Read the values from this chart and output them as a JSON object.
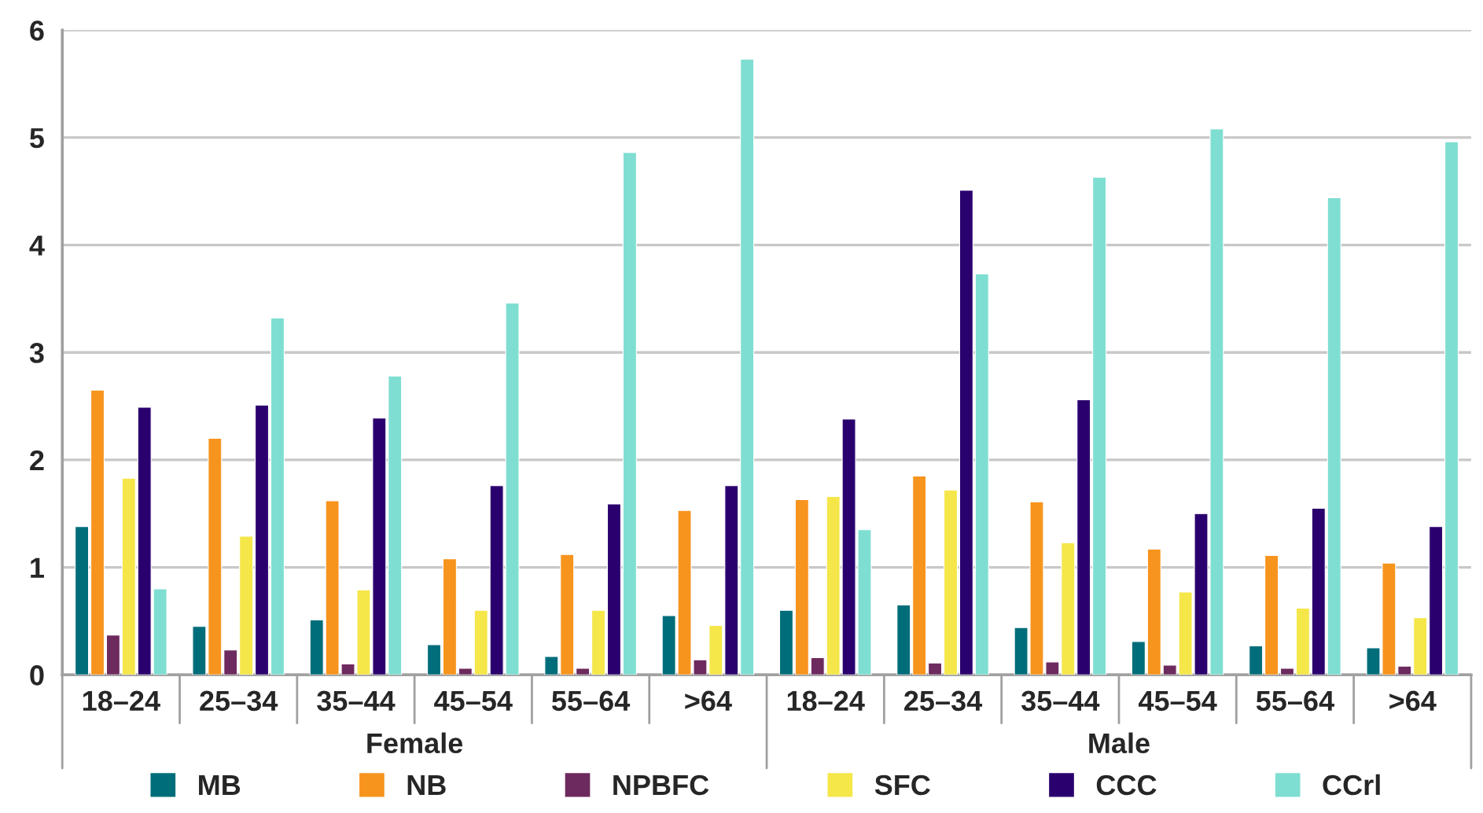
{
  "chart_data": {
    "type": "bar",
    "categories": [
      "18–24",
      "25–34",
      "35–44",
      "45–54",
      "55–64",
      ">64",
      "18–24",
      "25–34",
      "35–44",
      "45–54",
      "55–64",
      ">64"
    ],
    "annotations": [
      "Female",
      "Male"
    ],
    "series": [
      {
        "name": "MB",
        "color": "#006d7a",
        "values": [
          1.38,
          0.45,
          0.51,
          0.28,
          0.17,
          0.55,
          0.6,
          0.65,
          0.44,
          0.31,
          0.27,
          0.25
        ]
      },
      {
        "name": "NB",
        "color": "#f7941d",
        "values": [
          2.65,
          2.2,
          1.62,
          1.08,
          1.12,
          1.53,
          1.63,
          1.85,
          1.61,
          1.17,
          1.11,
          1.04
        ]
      },
      {
        "name": "NPBFC",
        "color": "#6d2a5e",
        "values": [
          0.37,
          0.23,
          0.1,
          0.06,
          0.06,
          0.14,
          0.16,
          0.11,
          0.12,
          0.09,
          0.06,
          0.08
        ]
      },
      {
        "name": "SFC",
        "color": "#f5e64a",
        "values": [
          1.83,
          1.29,
          0.79,
          0.6,
          0.6,
          0.46,
          1.66,
          1.72,
          1.23,
          0.77,
          0.62,
          0.53
        ]
      },
      {
        "name": "CCC",
        "color": "#2a006e",
        "values": [
          2.49,
          2.51,
          2.39,
          1.76,
          1.59,
          1.76,
          2.38,
          4.51,
          2.56,
          1.5,
          1.55,
          1.38
        ]
      },
      {
        "name": "CCrl",
        "color": "#7fded2",
        "values": [
          0.8,
          3.32,
          2.78,
          3.46,
          4.86,
          5.73,
          1.35,
          3.73,
          4.63,
          5.08,
          4.44,
          4.96
        ]
      }
    ],
    "ylim": [
      0,
      6
    ],
    "yticks": [
      0,
      1,
      2,
      3,
      4,
      5,
      6
    ],
    "grid": "y",
    "legend": "bottom"
  }
}
